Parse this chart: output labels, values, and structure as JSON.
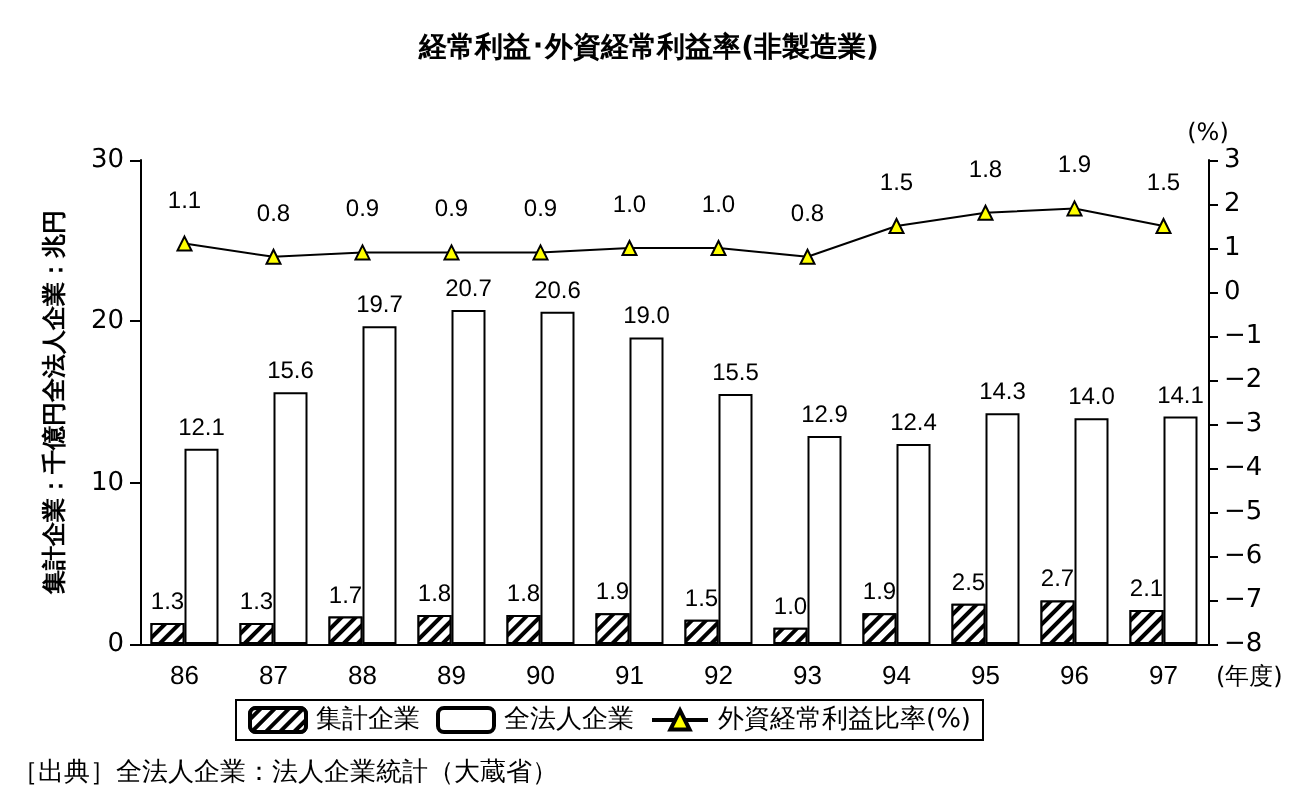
{
  "chart_data": {
    "type": "bar",
    "title": "経常利益･外資経常利益率(非製造業)",
    "xlabel": "(年度)",
    "ylabel": "集計企業：千億円全法人企業：兆円",
    "y2label": "(%)",
    "annotations": [
      "［出典］全法人企業：法人企業統計（大蔵省）"
    ],
    "categories": [
      "86",
      "87",
      "88",
      "89",
      "90",
      "91",
      "92",
      "93",
      "94",
      "95",
      "96",
      "97"
    ],
    "series": [
      {
        "name": "集計企業",
        "color": "#000000",
        "values": [
          1.3,
          1.3,
          1.7,
          1.8,
          1.8,
          1.9,
          1.5,
          1.0,
          1.9,
          2.5,
          2.7,
          2.1
        ],
        "value_labels": [
          "1.3",
          "1.3",
          "1.7",
          "1.8",
          "1.8",
          "1.9",
          "1.5",
          "1.0",
          "1.9",
          "2.5",
          "2.7",
          "2.1"
        ]
      },
      {
        "name": "全法人企業",
        "color": "#ffffff",
        "values": [
          12.1,
          15.6,
          19.7,
          20.7,
          20.6,
          19.0,
          15.5,
          12.9,
          12.4,
          14.3,
          14.0,
          14.1
        ],
        "value_labels": [
          "12.1",
          "15.6",
          "19.7",
          "20.7",
          "20.6",
          "19.0",
          "15.5",
          "12.9",
          "12.4",
          "14.3",
          "14.0",
          "14.1"
        ]
      },
      {
        "name": "外資経常利益比率(%)",
        "type": "line",
        "axis": "y2",
        "color": "#000000",
        "marker": "triangle",
        "values": [
          1.1,
          0.8,
          0.9,
          0.9,
          0.9,
          1.0,
          1.0,
          0.8,
          1.5,
          1.8,
          1.9,
          1.5
        ],
        "value_labels": [
          "1.1",
          "0.8",
          "0.9",
          "0.9",
          "0.9",
          "1.0",
          "1.0",
          "0.8",
          "1.5",
          "1.8",
          "1.9",
          "1.5"
        ]
      }
    ],
    "ylim": [
      0,
      30
    ],
    "yticks": [
      0,
      10,
      20,
      30
    ],
    "y2lim": [
      -8,
      3
    ],
    "y2ticks": [
      -8,
      -7,
      -6,
      -5,
      -4,
      -3,
      -2,
      -1,
      0,
      1,
      2,
      3
    ],
    "grid": false,
    "legend": "bottom"
  }
}
